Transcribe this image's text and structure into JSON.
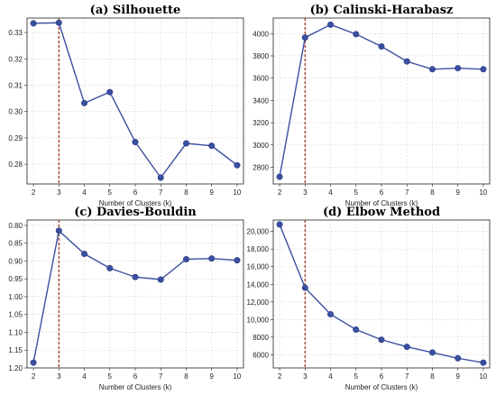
{
  "chart_data": [
    {
      "type": "line",
      "title": "(a) Silhouette",
      "xlabel": "Number of Clusters (k)",
      "ylabel": "",
      "x": [
        2,
        3,
        4,
        5,
        6,
        7,
        8,
        9,
        10
      ],
      "values": [
        0.3335,
        0.3337,
        0.3032,
        0.3074,
        0.2884,
        0.2749,
        0.2879,
        0.287,
        0.2796
      ],
      "xlim": [
        1.75,
        10.25
      ],
      "ylim": [
        0.2725,
        0.3355
      ],
      "yticks": [
        0.28,
        0.29,
        0.3,
        0.31,
        0.32,
        0.33
      ],
      "ytick_labels": [
        "0.28",
        "0.29",
        "0.30",
        "0.31",
        "0.32",
        "0.33"
      ],
      "y_inverted": false,
      "reference_x": 3,
      "grid": true,
      "color": "#3a4fa0",
      "reference_color": "#9e2a14"
    },
    {
      "type": "line",
      "title": "(b) Calinski-Harabasz",
      "xlabel": "Number of Clusters (k)",
      "ylabel": "",
      "x": [
        2,
        3,
        4,
        5,
        6,
        7,
        8,
        9,
        10
      ],
      "values": [
        2715,
        3965,
        4080,
        3995,
        3885,
        3750,
        3680,
        3690,
        3680
      ],
      "xlim": [
        1.75,
        10.25
      ],
      "ylim": [
        2650,
        4140
      ],
      "yticks": [
        2800,
        3000,
        3200,
        3400,
        3600,
        3800,
        4000
      ],
      "ytick_labels": [
        "2800",
        "3000",
        "3200",
        "3400",
        "3600",
        "3800",
        "4000"
      ],
      "y_inverted": false,
      "reference_x": 3,
      "grid": true,
      "color": "#3a4fa0",
      "reference_color": "#9e2a14"
    },
    {
      "type": "line",
      "title": "(c) Davies-Bouldin",
      "xlabel": "Number of Clusters (k)",
      "ylabel": "",
      "x": [
        2,
        3,
        4,
        5,
        6,
        7,
        8,
        9,
        10
      ],
      "values": [
        1.185,
        0.815,
        0.88,
        0.92,
        0.945,
        0.952,
        0.895,
        0.893,
        0.898
      ],
      "xlim": [
        1.75,
        10.25
      ],
      "ylim": [
        0.785,
        1.2
      ],
      "yticks": [
        0.8,
        0.85,
        0.9,
        0.95,
        1.0,
        1.05,
        1.1,
        1.15,
        1.2
      ],
      "ytick_labels": [
        "0.80",
        "0.85",
        "0.90",
        "0.95",
        "1.00",
        "1.05",
        "1.10",
        "1.15",
        "1.20"
      ],
      "y_inverted": true,
      "reference_x": 3,
      "grid": true,
      "color": "#3a4fa0",
      "reference_color": "#9e2a14"
    },
    {
      "type": "line",
      "title": "(d) Elbow Method",
      "xlabel": "Number of Clusters (k)",
      "ylabel": "",
      "x": [
        2,
        3,
        4,
        5,
        6,
        7,
        8,
        9,
        10
      ],
      "values": [
        20800,
        13600,
        10600,
        8850,
        7700,
        6900,
        6250,
        5600,
        5100
      ],
      "xlim": [
        1.75,
        10.25
      ],
      "ylim": [
        4500,
        21300
      ],
      "yticks": [
        6000,
        8000,
        10000,
        12000,
        14000,
        16000,
        18000,
        20000
      ],
      "ytick_labels": [
        "6000",
        "8000",
        "10,000",
        "12,000",
        "14,000",
        "16,000",
        "18,000",
        "20,000"
      ],
      "y_inverted": false,
      "reference_x": 3,
      "grid": true,
      "color": "#3a4fa0",
      "reference_color": "#9e2a14"
    }
  ]
}
